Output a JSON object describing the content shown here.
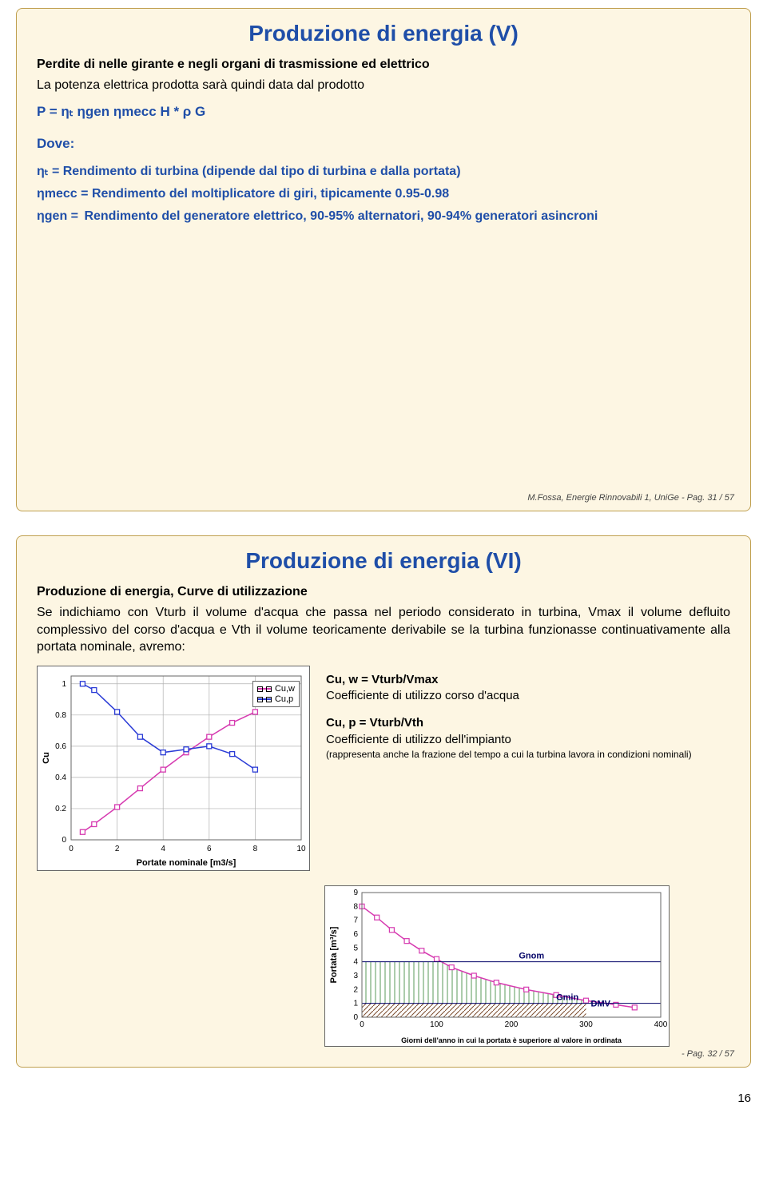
{
  "page_number": "16",
  "slide1": {
    "title": "Produzione di energia (V)",
    "subtitle": "Perdite di nelle girante e negli organi di trasmissione ed elettrico",
    "intro": "La potenza elettrica prodotta sarà quindi data dal prodotto",
    "formula": "P = ηₜ ηgen ηmecc H * ρ G",
    "dove": "Dove:",
    "def_etat": "ηₜ = Rendimento di turbina (dipende dal tipo di turbina e dalla portata)",
    "def_etamecc_sym": "ηmecc =",
    "def_etamecc": "Rendimento del moltiplicatore di giri, tipicamente 0.95-0.98",
    "def_etagen_sym": "ηgen  =",
    "def_etagen": "Rendimento del generatore elettrico, 90-95% alternatori, 90-94% generatori asincroni",
    "footer": "M.Fossa, Energie Rinnovabili 1, UniGe - Pag. 31 / 57"
  },
  "slide2": {
    "title": "Produzione di energia (VI)",
    "heading": "Produzione di energia, Curve di utilizzazione",
    "paragraph": "Se indichiamo con Vturb il volume d'acqua che passa nel periodo considerato in turbina, Vmax il volume defluito complessivo del corso d'acqua e Vth il volume teoricamente derivabile se la turbina funzionasse continuativamente alla portata nominale, avremo:",
    "chart_cu": {
      "type": "line",
      "x_label": "Portate nominale [m3/s]",
      "y_label": "Cu",
      "xlim": [
        0,
        10
      ],
      "ylim": [
        0,
        1.05
      ],
      "xticks": [
        0,
        2,
        4,
        6,
        8,
        10
      ],
      "yticks": [
        0,
        0.2,
        0.4,
        0.6,
        0.8,
        1
      ],
      "series": [
        {
          "name": "Cu,w",
          "color": "#d63ab0",
          "x": [
            0.5,
            1,
            2,
            3,
            4,
            5,
            6,
            7,
            8
          ],
          "y": [
            0.05,
            0.1,
            0.21,
            0.33,
            0.45,
            0.56,
            0.66,
            0.75,
            0.82
          ]
        },
        {
          "name": "Cu,p",
          "color": "#2a3bd6",
          "x": [
            0.5,
            1,
            2,
            3,
            4,
            5,
            6,
            7,
            8
          ],
          "y": [
            1.0,
            0.96,
            0.82,
            0.66,
            0.56,
            0.58,
            0.6,
            0.55,
            0.45
          ]
        }
      ],
      "marker": "square",
      "marker_size": 6,
      "line_width": 1.5,
      "grid_color": "#b0b0b0",
      "background": "#ffffff"
    },
    "defs": {
      "cuw_formula": "Cu, w = Vturb/Vmax",
      "cuw_text": "Coefficiente di utilizzo corso d'acqua",
      "cup_formula": "Cu, p = Vturb/Vth",
      "cup_text": "Coefficiente di utilizzo dell'impianto",
      "cup_note": "(rappresenta anche la frazione del tempo a cui la turbina lavora in condizioni nominali)"
    },
    "chart_g": {
      "type": "area-step",
      "x_label": "Giorni dell'anno in cui la portata è superiore al valore in ordinata",
      "y_label": "Portata [m³/s]",
      "xlim": [
        0,
        400
      ],
      "ylim": [
        0,
        9
      ],
      "xticks": [
        0,
        100,
        200,
        300,
        400
      ],
      "yticks": [
        0,
        1,
        2,
        3,
        4,
        5,
        6,
        7,
        8,
        9
      ],
      "curve_x": [
        0,
        20,
        40,
        60,
        80,
        100,
        120,
        150,
        180,
        220,
        260,
        300,
        340,
        365
      ],
      "curve_y": [
        8.0,
        7.2,
        6.3,
        5.5,
        4.8,
        4.2,
        3.6,
        3.0,
        2.5,
        2.0,
        1.6,
        1.2,
        0.9,
        0.7
      ],
      "g_nom": 4,
      "g_min": 1,
      "dmv_x": 300,
      "labels": {
        "gnom": "Gnom",
        "gmin": "Gmin",
        "dmv": "DMV"
      },
      "curve_color": "#d63ab0",
      "hatch_color_v": "#5a9a5a",
      "hatch_color_d": "#7a4a2a",
      "background": "#ffffff"
    },
    "footer": "- Pag. 32 / 57"
  }
}
